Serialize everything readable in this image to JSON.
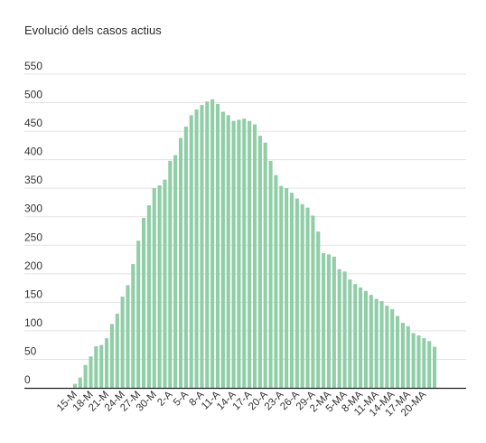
{
  "chart_data": {
    "type": "bar",
    "title": "Evolució dels casos actius",
    "xlabel": "",
    "ylabel": "",
    "ylim": [
      0,
      550
    ],
    "yticks": [
      0,
      50,
      100,
      150,
      200,
      250,
      300,
      350,
      400,
      450,
      500,
      550
    ],
    "grid": true,
    "bar_color": "#8fcea7",
    "x_tick_labels": [
      "15-M",
      "18-M",
      "21-M",
      "24-M",
      "27-M",
      "30-M",
      "2-A",
      "5-A",
      "8-A",
      "11-A",
      "14-A",
      "17-A",
      "20-A",
      "23-A",
      "26-A",
      "29-A",
      "2-MA",
      "5-MA",
      "8-MA",
      "11-MA",
      "14-MA",
      "17-MA",
      "20-MA"
    ],
    "values": [
      7,
      18,
      40,
      55,
      73,
      75,
      87,
      112,
      130,
      160,
      180,
      217,
      258,
      298,
      320,
      350,
      355,
      365,
      398,
      408,
      438,
      458,
      478,
      488,
      496,
      502,
      506,
      498,
      484,
      478,
      468,
      470,
      472,
      468,
      462,
      442,
      430,
      398,
      373,
      354,
      350,
      342,
      332,
      322,
      316,
      302,
      274,
      236,
      234,
      230,
      208,
      204,
      190,
      182,
      176,
      170,
      163,
      156,
      152,
      144,
      138,
      126,
      114,
      108,
      96,
      92,
      87,
      82,
      72
    ]
  }
}
